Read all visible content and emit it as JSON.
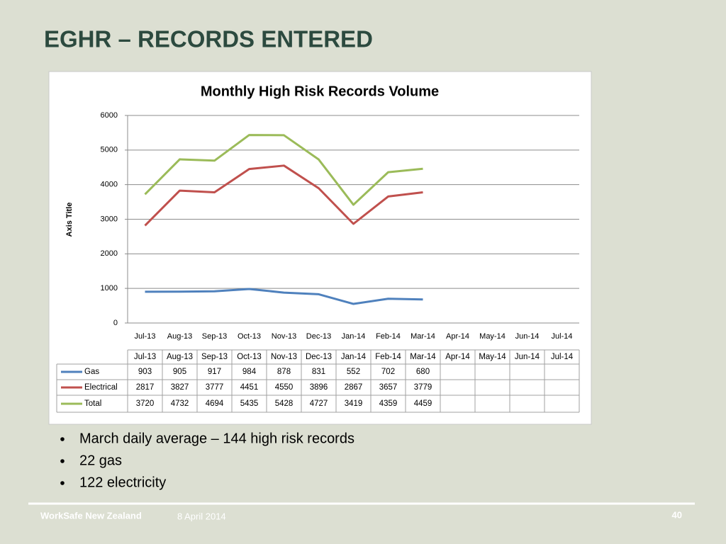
{
  "slide_title": "EGHR – RECORDS ENTERED",
  "chart_data": {
    "type": "line",
    "title": "Monthly High Risk Records Volume",
    "y_label": "Axis Title",
    "categories": [
      "Jul-13",
      "Aug-13",
      "Sep-13",
      "Oct-13",
      "Nov-13",
      "Dec-13",
      "Jan-14",
      "Feb-14",
      "Mar-14",
      "Apr-14",
      "May-14",
      "Jun-14",
      "Jul-14"
    ],
    "series": [
      {
        "name": "Gas",
        "color": "#4f81bd",
        "values": [
          903,
          905,
          917,
          984,
          878,
          831,
          552,
          702,
          680,
          null,
          null,
          null,
          null
        ]
      },
      {
        "name": "Electrical",
        "color": "#c0504d",
        "values": [
          2817,
          3827,
          3777,
          4451,
          4550,
          3896,
          2867,
          3657,
          3779,
          null,
          null,
          null,
          null
        ]
      },
      {
        "name": "Total",
        "color": "#9bbb59",
        "values": [
          3720,
          4732,
          4694,
          5435,
          5428,
          4727,
          3419,
          4359,
          4459,
          null,
          null,
          null,
          null
        ]
      }
    ],
    "ylim": [
      0,
      6000
    ],
    "yticks": [
      0,
      1000,
      2000,
      3000,
      4000,
      5000,
      6000
    ],
    "grid": true,
    "data_table": true
  },
  "bullets": [
    "March daily average – 144 high risk records",
    "22 gas",
    "122 electricity"
  ],
  "footer": {
    "organization": "WorkSafe New Zealand",
    "date": "8 April 2014",
    "page": "40"
  }
}
